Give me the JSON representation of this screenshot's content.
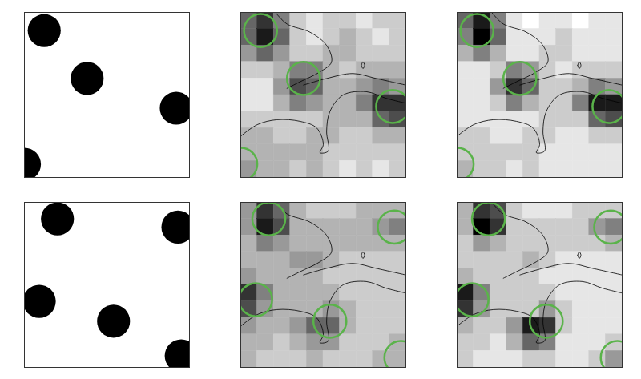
{
  "chart_data": [
    {
      "type": "disks",
      "xlim": [
        0,
        1
      ],
      "ylim": [
        0,
        1
      ],
      "tick_labels": false,
      "color": "#000000",
      "disks": [
        {
          "x": 0.12,
          "y": 0.11,
          "r": 0.1
        },
        {
          "x": 0.38,
          "y": 0.4,
          "r": 0.1
        },
        {
          "x": 0.92,
          "y": 0.58,
          "r": 0.1
        },
        {
          "x": 0.0,
          "y": 0.92,
          "r": 0.1
        }
      ]
    },
    {
      "type": "heatmap",
      "xlim": [
        0,
        1
      ],
      "ylim": [
        0,
        1
      ],
      "tick_labels": false,
      "color_range": [
        0,
        1
      ],
      "cells": [
        [
          0.6,
          0.8,
          0.5,
          0.2,
          0.1,
          0.2,
          0.2,
          0.1,
          0.2,
          0.2
        ],
        [
          0.6,
          0.9,
          0.6,
          0.2,
          0.1,
          0.2,
          0.3,
          0.2,
          0.1,
          0.2
        ],
        [
          0.4,
          0.6,
          0.4,
          0.2,
          0.2,
          0.3,
          0.3,
          0.2,
          0.2,
          0.2
        ],
        [
          0.2,
          0.2,
          0.3,
          0.5,
          0.5,
          0.3,
          0.2,
          0.3,
          0.3,
          0.3
        ],
        [
          0.1,
          0.1,
          0.4,
          0.7,
          0.6,
          0.3,
          0.3,
          0.4,
          0.5,
          0.4
        ],
        [
          0.1,
          0.1,
          0.3,
          0.5,
          0.4,
          0.3,
          0.3,
          0.5,
          0.8,
          0.8
        ],
        [
          0.2,
          0.2,
          0.2,
          0.2,
          0.2,
          0.3,
          0.3,
          0.3,
          0.6,
          0.7
        ],
        [
          0.3,
          0.3,
          0.2,
          0.2,
          0.3,
          0.3,
          0.2,
          0.2,
          0.3,
          0.3
        ],
        [
          0.3,
          0.3,
          0.3,
          0.3,
          0.3,
          0.2,
          0.2,
          0.2,
          0.2,
          0.2
        ],
        [
          0.4,
          0.3,
          0.3,
          0.2,
          0.3,
          0.2,
          0.1,
          0.2,
          0.1,
          0.2
        ]
      ],
      "circles": {
        "color": "#5ab34a",
        "items": [
          {
            "x": 0.12,
            "y": 0.11,
            "r": 0.1
          },
          {
            "x": 0.38,
            "y": 0.4,
            "r": 0.1
          },
          {
            "x": 0.92,
            "y": 0.57,
            "r": 0.1
          },
          {
            "x": 0.0,
            "y": 0.92,
            "r": 0.1
          }
        ]
      },
      "contours": [
        [
          [
            0.21,
            0
          ],
          [
            0.28,
            0.07
          ],
          [
            0.42,
            0.12
          ],
          [
            0.52,
            0.2
          ],
          [
            0.55,
            0.3
          ],
          [
            0.48,
            0.36
          ],
          [
            0.36,
            0.42
          ],
          [
            0.28,
            0.46
          ]
        ],
        [
          [
            0.38,
            0.44
          ],
          [
            0.52,
            0.4
          ],
          [
            0.68,
            0.37
          ],
          [
            0.82,
            0.4
          ],
          [
            1.0,
            0.44
          ]
        ],
        [
          [
            0.0,
            0.75
          ],
          [
            0.1,
            0.68
          ],
          [
            0.22,
            0.65
          ],
          [
            0.36,
            0.66
          ],
          [
            0.46,
            0.7
          ],
          [
            0.5,
            0.8
          ],
          [
            0.48,
            0.85
          ],
          [
            0.53,
            0.84
          ],
          [
            0.52,
            0.72
          ],
          [
            0.54,
            0.6
          ],
          [
            0.62,
            0.5
          ],
          [
            0.76,
            0.48
          ],
          [
            0.88,
            0.52
          ],
          [
            1.0,
            0.55
          ]
        ],
        [
          [
            0.73,
            0.32
          ],
          [
            0.74,
            0.3
          ],
          [
            0.75,
            0.32
          ],
          [
            0.74,
            0.34
          ],
          [
            0.73,
            0.32
          ]
        ]
      ]
    },
    {
      "type": "heatmap",
      "xlim": [
        0,
        1
      ],
      "ylim": [
        0,
        1
      ],
      "tick_labels": false,
      "color_range": [
        0,
        1
      ],
      "cells": [
        [
          0.6,
          0.9,
          0.5,
          0.1,
          0.0,
          0.1,
          0.1,
          0.0,
          0.1,
          0.1
        ],
        [
          0.5,
          1.0,
          0.6,
          0.1,
          0.1,
          0.1,
          0.2,
          0.1,
          0.1,
          0.1
        ],
        [
          0.3,
          0.5,
          0.3,
          0.1,
          0.1,
          0.2,
          0.2,
          0.1,
          0.1,
          0.1
        ],
        [
          0.1,
          0.1,
          0.2,
          0.5,
          0.4,
          0.2,
          0.1,
          0.2,
          0.2,
          0.2
        ],
        [
          0.1,
          0.1,
          0.4,
          0.8,
          0.6,
          0.2,
          0.2,
          0.3,
          0.5,
          0.4
        ],
        [
          0.1,
          0.1,
          0.2,
          0.5,
          0.3,
          0.2,
          0.2,
          0.5,
          0.9,
          0.9
        ],
        [
          0.1,
          0.1,
          0.1,
          0.1,
          0.1,
          0.2,
          0.2,
          0.2,
          0.6,
          0.7
        ],
        [
          0.2,
          0.2,
          0.1,
          0.1,
          0.2,
          0.2,
          0.1,
          0.1,
          0.2,
          0.2
        ],
        [
          0.2,
          0.2,
          0.2,
          0.2,
          0.2,
          0.1,
          0.1,
          0.1,
          0.1,
          0.1
        ],
        [
          0.3,
          0.2,
          0.2,
          0.1,
          0.2,
          0.1,
          0.1,
          0.1,
          0.1,
          0.1
        ]
      ],
      "circles": {
        "color": "#5ab34a",
        "items": [
          {
            "x": 0.12,
            "y": 0.11,
            "r": 0.1
          },
          {
            "x": 0.38,
            "y": 0.4,
            "r": 0.1
          },
          {
            "x": 0.92,
            "y": 0.57,
            "r": 0.1
          },
          {
            "x": 0.0,
            "y": 0.92,
            "r": 0.1
          }
        ]
      },
      "contours": [
        [
          [
            0.21,
            0
          ],
          [
            0.28,
            0.07
          ],
          [
            0.42,
            0.12
          ],
          [
            0.52,
            0.2
          ],
          [
            0.55,
            0.3
          ],
          [
            0.48,
            0.36
          ],
          [
            0.36,
            0.42
          ],
          [
            0.28,
            0.46
          ]
        ],
        [
          [
            0.38,
            0.44
          ],
          [
            0.52,
            0.4
          ],
          [
            0.68,
            0.37
          ],
          [
            0.82,
            0.4
          ],
          [
            1.0,
            0.44
          ]
        ],
        [
          [
            0.0,
            0.75
          ],
          [
            0.1,
            0.68
          ],
          [
            0.22,
            0.65
          ],
          [
            0.36,
            0.66
          ],
          [
            0.46,
            0.7
          ],
          [
            0.5,
            0.8
          ],
          [
            0.48,
            0.85
          ],
          [
            0.53,
            0.84
          ],
          [
            0.52,
            0.72
          ],
          [
            0.54,
            0.6
          ],
          [
            0.62,
            0.5
          ],
          [
            0.76,
            0.48
          ],
          [
            0.88,
            0.52
          ],
          [
            1.0,
            0.55
          ]
        ],
        [
          [
            0.73,
            0.32
          ],
          [
            0.74,
            0.3
          ],
          [
            0.75,
            0.32
          ],
          [
            0.74,
            0.34
          ],
          [
            0.73,
            0.32
          ]
        ]
      ]
    },
    {
      "type": "disks",
      "xlim": [
        0,
        1
      ],
      "ylim": [
        0,
        1
      ],
      "tick_labels": false,
      "color": "#000000",
      "disks": [
        {
          "x": 0.2,
          "y": 0.1,
          "r": 0.1
        },
        {
          "x": 0.93,
          "y": 0.15,
          "r": 0.1
        },
        {
          "x": 0.09,
          "y": 0.6,
          "r": 0.1
        },
        {
          "x": 0.54,
          "y": 0.72,
          "r": 0.1
        },
        {
          "x": 0.95,
          "y": 0.93,
          "r": 0.1
        }
      ]
    },
    {
      "type": "heatmap",
      "xlim": [
        0,
        1
      ],
      "ylim": [
        0,
        1
      ],
      "tick_labels": false,
      "color_range": [
        0,
        1
      ],
      "cells": [
        [
          0.4,
          0.8,
          0.6,
          0.3,
          0.2,
          0.2,
          0.2,
          0.3,
          0.3,
          0.3
        ],
        [
          0.4,
          0.9,
          0.7,
          0.3,
          0.3,
          0.3,
          0.3,
          0.3,
          0.4,
          0.5
        ],
        [
          0.3,
          0.5,
          0.4,
          0.3,
          0.3,
          0.3,
          0.3,
          0.3,
          0.3,
          0.3
        ],
        [
          0.3,
          0.3,
          0.3,
          0.4,
          0.4,
          0.3,
          0.2,
          0.2,
          0.2,
          0.2
        ],
        [
          0.4,
          0.3,
          0.3,
          0.3,
          0.3,
          0.2,
          0.2,
          0.2,
          0.2,
          0.2
        ],
        [
          0.8,
          0.5,
          0.3,
          0.3,
          0.3,
          0.3,
          0.2,
          0.2,
          0.2,
          0.2
        ],
        [
          0.7,
          0.4,
          0.3,
          0.3,
          0.3,
          0.4,
          0.3,
          0.2,
          0.2,
          0.2
        ],
        [
          0.4,
          0.3,
          0.3,
          0.4,
          0.6,
          0.6,
          0.3,
          0.2,
          0.2,
          0.2
        ],
        [
          0.3,
          0.3,
          0.2,
          0.3,
          0.4,
          0.4,
          0.2,
          0.2,
          0.2,
          0.3
        ],
        [
          0.3,
          0.2,
          0.2,
          0.2,
          0.3,
          0.2,
          0.2,
          0.2,
          0.3,
          0.3
        ]
      ],
      "circles": {
        "color": "#5ab34a",
        "items": [
          {
            "x": 0.17,
            "y": 0.1,
            "r": 0.1
          },
          {
            "x": 0.93,
            "y": 0.15,
            "r": 0.1
          },
          {
            "x": 0.09,
            "y": 0.59,
            "r": 0.1
          },
          {
            "x": 0.54,
            "y": 0.72,
            "r": 0.1
          },
          {
            "x": 0.97,
            "y": 0.94,
            "r": 0.1
          }
        ]
      },
      "contours": [
        [
          [
            0.21,
            0
          ],
          [
            0.28,
            0.07
          ],
          [
            0.42,
            0.12
          ],
          [
            0.52,
            0.2
          ],
          [
            0.55,
            0.3
          ],
          [
            0.48,
            0.36
          ],
          [
            0.36,
            0.42
          ],
          [
            0.28,
            0.46
          ]
        ],
        [
          [
            0.38,
            0.44
          ],
          [
            0.52,
            0.4
          ],
          [
            0.68,
            0.37
          ],
          [
            0.82,
            0.4
          ],
          [
            1.0,
            0.44
          ]
        ],
        [
          [
            0.0,
            0.75
          ],
          [
            0.1,
            0.68
          ],
          [
            0.22,
            0.65
          ],
          [
            0.36,
            0.66
          ],
          [
            0.46,
            0.7
          ],
          [
            0.5,
            0.8
          ],
          [
            0.48,
            0.85
          ],
          [
            0.53,
            0.84
          ],
          [
            0.52,
            0.72
          ],
          [
            0.54,
            0.6
          ],
          [
            0.62,
            0.5
          ],
          [
            0.76,
            0.48
          ],
          [
            0.88,
            0.52
          ],
          [
            1.0,
            0.55
          ]
        ],
        [
          [
            0.73,
            0.32
          ],
          [
            0.74,
            0.3
          ],
          [
            0.75,
            0.32
          ],
          [
            0.74,
            0.34
          ],
          [
            0.73,
            0.32
          ]
        ]
      ]
    },
    {
      "type": "heatmap",
      "xlim": [
        0,
        1
      ],
      "ylim": [
        0,
        1
      ],
      "tick_labels": false,
      "color_range": [
        0,
        1
      ],
      "cells": [
        [
          0.3,
          0.8,
          0.7,
          0.2,
          0.1,
          0.1,
          0.1,
          0.2,
          0.2,
          0.2
        ],
        [
          0.3,
          1.0,
          0.8,
          0.2,
          0.2,
          0.2,
          0.2,
          0.2,
          0.4,
          0.5
        ],
        [
          0.2,
          0.4,
          0.3,
          0.2,
          0.2,
          0.2,
          0.2,
          0.2,
          0.2,
          0.3
        ],
        [
          0.2,
          0.2,
          0.2,
          0.2,
          0.3,
          0.2,
          0.1,
          0.1,
          0.1,
          0.1
        ],
        [
          0.3,
          0.2,
          0.2,
          0.2,
          0.2,
          0.1,
          0.1,
          0.1,
          0.1,
          0.1
        ],
        [
          0.9,
          0.5,
          0.2,
          0.2,
          0.2,
          0.2,
          0.1,
          0.1,
          0.1,
          0.1
        ],
        [
          0.8,
          0.4,
          0.2,
          0.2,
          0.2,
          0.4,
          0.2,
          0.1,
          0.1,
          0.1
        ],
        [
          0.3,
          0.2,
          0.2,
          0.4,
          0.9,
          0.8,
          0.2,
          0.1,
          0.1,
          0.1
        ],
        [
          0.2,
          0.2,
          0.1,
          0.3,
          0.6,
          0.5,
          0.1,
          0.1,
          0.1,
          0.2
        ],
        [
          0.2,
          0.1,
          0.1,
          0.1,
          0.2,
          0.2,
          0.1,
          0.1,
          0.2,
          0.4
        ]
      ],
      "circles": {
        "color": "#5ab34a",
        "items": [
          {
            "x": 0.19,
            "y": 0.1,
            "r": 0.1
          },
          {
            "x": 0.93,
            "y": 0.15,
            "r": 0.1
          },
          {
            "x": 0.09,
            "y": 0.59,
            "r": 0.1
          },
          {
            "x": 0.54,
            "y": 0.72,
            "r": 0.1
          },
          {
            "x": 0.97,
            "y": 0.94,
            "r": 0.1
          }
        ]
      },
      "contours": [
        [
          [
            0.21,
            0
          ],
          [
            0.28,
            0.07
          ],
          [
            0.42,
            0.12
          ],
          [
            0.52,
            0.2
          ],
          [
            0.55,
            0.3
          ],
          [
            0.48,
            0.36
          ],
          [
            0.36,
            0.42
          ],
          [
            0.28,
            0.46
          ]
        ],
        [
          [
            0.38,
            0.44
          ],
          [
            0.52,
            0.4
          ],
          [
            0.68,
            0.37
          ],
          [
            0.82,
            0.4
          ],
          [
            1.0,
            0.44
          ]
        ],
        [
          [
            0.0,
            0.75
          ],
          [
            0.1,
            0.68
          ],
          [
            0.22,
            0.65
          ],
          [
            0.36,
            0.66
          ],
          [
            0.46,
            0.7
          ],
          [
            0.5,
            0.8
          ],
          [
            0.48,
            0.85
          ],
          [
            0.53,
            0.84
          ],
          [
            0.52,
            0.72
          ],
          [
            0.54,
            0.6
          ],
          [
            0.62,
            0.5
          ],
          [
            0.76,
            0.48
          ],
          [
            0.88,
            0.52
          ],
          [
            1.0,
            0.55
          ]
        ],
        [
          [
            0.73,
            0.32
          ],
          [
            0.74,
            0.3
          ],
          [
            0.75,
            0.32
          ],
          [
            0.74,
            0.34
          ],
          [
            0.73,
            0.32
          ]
        ]
      ]
    }
  ]
}
